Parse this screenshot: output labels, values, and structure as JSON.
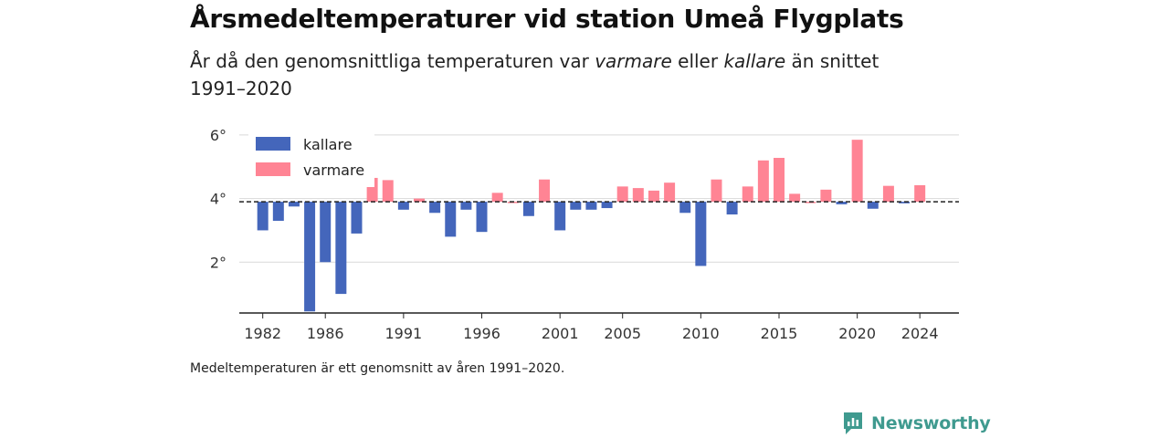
{
  "title": "Årsmedeltemperaturer vid station Umeå Flygplats",
  "subtitle": {
    "part1": "År då den genomsnittliga temperaturen var ",
    "em1": "varmare",
    "part2": " eller ",
    "em2": "kallare",
    "part3": " än snittet 1991–2020"
  },
  "footnote": "Medeltemperaturen är ett genomsnitt av åren 1991–2020.",
  "brand": {
    "name": "Newsworthy",
    "icon": "newsworthy-logo-icon",
    "color": "#3f9a8f"
  },
  "chart_data": {
    "type": "bar",
    "baseline": 3.9,
    "ylim": [
      0.4,
      6.4
    ],
    "yticks": [
      2,
      4,
      6
    ],
    "ytick_labels": [
      "2°",
      "4°",
      "6°"
    ],
    "xticks": [
      1982,
      1986,
      1991,
      1996,
      2001,
      2005,
      2010,
      2015,
      2020,
      2024
    ],
    "xlim": [
      1980.5,
      2026.5
    ],
    "grid": true,
    "legend_position": "top-left",
    "colors": {
      "kallare": "#4466bb",
      "varmare": "#ff8494"
    },
    "legend": [
      "kallare",
      "varmare"
    ],
    "years": [
      1982,
      1983,
      1984,
      1985,
      1986,
      1987,
      1988,
      1989,
      1990,
      1991,
      1992,
      1993,
      1994,
      1995,
      1996,
      1997,
      1998,
      1999,
      2000,
      2001,
      2002,
      2003,
      2004,
      2005,
      2006,
      2007,
      2008,
      2009,
      2010,
      2011,
      2012,
      2013,
      2014,
      2015,
      2016,
      2017,
      2018,
      2019,
      2020,
      2021,
      2022,
      2023,
      2024
    ],
    "values": [
      3.0,
      3.3,
      3.75,
      0.45,
      2.0,
      1.0,
      2.9,
      4.65,
      4.58,
      3.65,
      4.0,
      3.55,
      2.8,
      3.65,
      2.95,
      4.18,
      3.9,
      3.45,
      4.6,
      3.0,
      3.65,
      3.65,
      3.7,
      4.38,
      4.33,
      4.25,
      4.5,
      3.55,
      1.88,
      4.6,
      3.5,
      4.38,
      5.2,
      5.28,
      4.15,
      3.9,
      4.28,
      3.82,
      5.85,
      3.68,
      4.4,
      3.85,
      4.42
    ]
  }
}
